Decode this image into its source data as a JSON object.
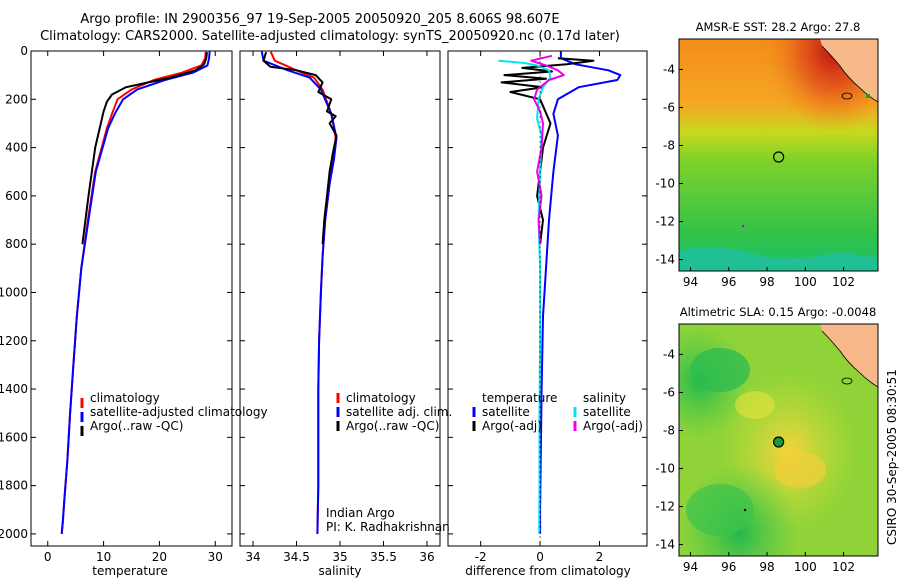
{
  "titles": {
    "line1": "Argo profile: IN 2900356_97 19-Sep-2005 20050920_205 8.606S 98.607E",
    "line2": "Climatology: CARS2000. Satellite-adjusted climatology: synTS_20050920.nc (0.17d later)"
  },
  "colors": {
    "climatology": "#ff0000",
    "satellite": "#0000ff",
    "argo": "#000000",
    "cyan": "#00e5ee",
    "magenta": "#ee00ee",
    "land": "#f7b98a"
  },
  "chart_data": [
    {
      "type": "line",
      "xlabel": "temperature",
      "ylabel": "",
      "ylim": [
        2050,
        0
      ],
      "xlim": [
        -3,
        33
      ],
      "xticks": [
        "0",
        "10",
        "20",
        "30"
      ],
      "xtick_values": [
        0,
        10,
        20,
        30
      ],
      "yticks": [
        "0",
        "200",
        "400",
        "600",
        "800",
        "1000",
        "1200",
        "1400",
        "1600",
        "1800",
        "2000"
      ],
      "ytick_values": [
        0,
        200,
        400,
        600,
        800,
        1000,
        1200,
        1400,
        1600,
        1800,
        2000
      ],
      "legend": [
        "climatology",
        "satellite-adjusted climatology",
        "Argo(..raw -QC)"
      ],
      "series": [
        {
          "name": "climatology",
          "color": "#ff0000",
          "x": [
            28.3,
            28.2,
            27.5,
            24,
            19,
            15,
            12.5,
            11.5,
            10.6,
            8.5,
            7.2,
            6.0,
            5.2,
            4.6,
            4.0,
            3.5,
            3.0,
            2.7,
            2.5
          ],
          "y": [
            0,
            30,
            60,
            90,
            120,
            160,
            200,
            260,
            320,
            500,
            700,
            900,
            1100,
            1300,
            1500,
            1700,
            1850,
            1950,
            2000
          ]
        },
        {
          "name": "satellite-adjusted climatology",
          "color": "#0000ff",
          "x": [
            29.0,
            28.9,
            28.6,
            26,
            21,
            16,
            13.5,
            12,
            10.8,
            8.6,
            7.3,
            6.0,
            5.2,
            4.6,
            4.0,
            3.5,
            3.0,
            2.7,
            2.5
          ],
          "y": [
            0,
            30,
            60,
            90,
            120,
            160,
            200,
            260,
            320,
            500,
            700,
            900,
            1100,
            1300,
            1500,
            1700,
            1850,
            1950,
            2000
          ]
        },
        {
          "name": "Argo(..raw -QC)",
          "color": "#000000",
          "x": [
            28.5,
            28.4,
            28.0,
            26.5,
            22,
            17,
            14,
            11.5,
            10.6,
            10.0,
            8.5,
            7.3,
            6.2
          ],
          "y": [
            5,
            30,
            55,
            80,
            110,
            135,
            150,
            180,
            210,
            250,
            400,
            600,
            800
          ]
        }
      ]
    },
    {
      "type": "line",
      "xlabel": "salinity",
      "ylim": [
        2050,
        0
      ],
      "xlim": [
        33.85,
        36.15
      ],
      "xticks": [
        "34",
        "34.5",
        "35",
        "35.5",
        "36"
      ],
      "xtick_values": [
        34,
        34.5,
        35,
        35.5,
        36
      ],
      "legend": [
        "climatology",
        "satellite adj. clim.",
        "Argo(..raw -QC)"
      ],
      "annotation": [
        "Indian Argo",
        "PI: K. Radhakrishnan"
      ],
      "series": [
        {
          "name": "climatology",
          "color": "#ff0000",
          "x": [
            34.2,
            34.25,
            34.5,
            34.7,
            34.8,
            34.9,
            34.95,
            34.92,
            34.88,
            34.83,
            34.8,
            34.78,
            34.76,
            34.75,
            34.75,
            34.75,
            34.74
          ],
          "y": [
            0,
            40,
            80,
            110,
            160,
            260,
            360,
            450,
            550,
            700,
            850,
            1000,
            1200,
            1400,
            1600,
            1800,
            2000
          ]
        },
        {
          "name": "satellite adj. clim.",
          "color": "#0000ff",
          "x": [
            34.1,
            34.12,
            34.4,
            34.65,
            34.78,
            34.9,
            34.96,
            34.93,
            34.88,
            34.83,
            34.8,
            34.78,
            34.76,
            34.75,
            34.75,
            34.75,
            34.74
          ],
          "y": [
            0,
            40,
            80,
            110,
            160,
            260,
            360,
            450,
            550,
            700,
            850,
            1000,
            1200,
            1400,
            1600,
            1800,
            2000
          ]
        },
        {
          "name": "Argo(..raw -QC)",
          "color": "#000000",
          "x": [
            34.15,
            34.12,
            34.2,
            34.5,
            34.72,
            34.8,
            34.75,
            34.9,
            34.85,
            34.95,
            34.88,
            34.96,
            34.92,
            34.88,
            34.85,
            34.82,
            34.8
          ],
          "y": [
            5,
            40,
            65,
            80,
            100,
            130,
            170,
            200,
            250,
            270,
            300,
            350,
            420,
            500,
            600,
            700,
            800
          ]
        }
      ]
    },
    {
      "type": "line",
      "xlabel": "difference from climatology",
      "ylim": [
        2050,
        0
      ],
      "xlim": [
        -3.1,
        3.6
      ],
      "xticks": [
        "-2",
        "0",
        "2"
      ],
      "xtick_values": [
        -2,
        0,
        2
      ],
      "legend_headers": [
        "temperature",
        "salinity"
      ],
      "legend": [
        "satellite",
        "Argo(-adj)",
        "satellite",
        "Argo(-adj)"
      ],
      "series": [
        {
          "name": "temperature satellite",
          "color": "#0000ff",
          "x": [
            0.7,
            0.7,
            1.2,
            2.3,
            2.7,
            2.6,
            1.3,
            0.6,
            0.45,
            0.6,
            0.45,
            0.3,
            0.2,
            0.1,
            0.05,
            0.02,
            0.0,
            0.0
          ],
          "y": [
            0,
            30,
            55,
            80,
            100,
            120,
            150,
            200,
            260,
            350,
            500,
            700,
            900,
            1100,
            1400,
            1700,
            1900,
            2000
          ]
        },
        {
          "name": "temperature Argo(-adj)",
          "color": "#000000",
          "x": [
            0.6,
            1.8,
            0.9,
            -0.6,
            0.4,
            -1.2,
            0.2,
            -1.3,
            0.1,
            -1.0,
            0.0,
            0.35,
            0.1,
            0.0,
            -0.1,
            0.1,
            0.0
          ],
          "y": [
            30,
            40,
            55,
            70,
            85,
            100,
            115,
            130,
            150,
            170,
            200,
            300,
            400,
            500,
            600,
            700,
            800
          ]
        },
        {
          "name": "salinity satellite",
          "color": "#00e5ee",
          "x": [
            -1.4,
            -0.5,
            -0.1,
            0.3,
            0.35,
            0.1,
            -0.05,
            -0.1,
            0.05,
            0.0,
            -0.05,
            0.0,
            0.0,
            -0.02,
            -0.02,
            -0.03
          ],
          "y": [
            40,
            50,
            60,
            80,
            110,
            150,
            200,
            280,
            350,
            500,
            700,
            900,
            1200,
            1500,
            1800,
            2000
          ]
        },
        {
          "name": "salinity Argo(-adj)",
          "color": "#ee00ee",
          "x": [
            0.4,
            -0.3,
            0.2,
            0.6,
            0.8,
            0.3,
            -0.1,
            -0.2,
            0.0,
            0.1,
            0.05,
            -0.1,
            0.05,
            0.0,
            -0.05,
            0.0
          ],
          "y": [
            20,
            40,
            60,
            80,
            100,
            120,
            160,
            200,
            250,
            300,
            400,
            500,
            600,
            650,
            700,
            800
          ]
        }
      ]
    },
    {
      "type": "heatmap",
      "title": "AMSR-E SST: 28.2 Argo: 27.8",
      "xticks": [
        "94",
        "96",
        "98",
        "100",
        "102"
      ],
      "xtick_values": [
        94,
        96,
        98,
        100,
        102
      ],
      "yticks": [
        "-4",
        "-6",
        "-8",
        "-10",
        "-12",
        "-14"
      ],
      "ytick_values": [
        -4,
        -6,
        -8,
        -10,
        -12,
        -14
      ],
      "xlim": [
        93.4,
        103.8
      ],
      "ylim": [
        -14.6,
        -2.4
      ],
      "marker": {
        "lon": 98.607,
        "lat": -8.606
      }
    },
    {
      "type": "heatmap",
      "title": "Altimetric SLA: 0.15 Argo: -0.0048",
      "xticks": [
        "94",
        "96",
        "98",
        "100",
        "102"
      ],
      "xtick_values": [
        94,
        96,
        98,
        100,
        102
      ],
      "yticks": [
        "-4",
        "-6",
        "-8",
        "-10",
        "-12",
        "-14"
      ],
      "ytick_values": [
        -4,
        -6,
        -8,
        -10,
        -12,
        -14
      ],
      "xlim": [
        93.4,
        103.8
      ],
      "ylim": [
        -14.6,
        -2.4
      ],
      "marker": {
        "lon": 98.607,
        "lat": -8.606
      }
    }
  ],
  "stamp": "CSIRO 30-Sep-2005 08:30:51"
}
